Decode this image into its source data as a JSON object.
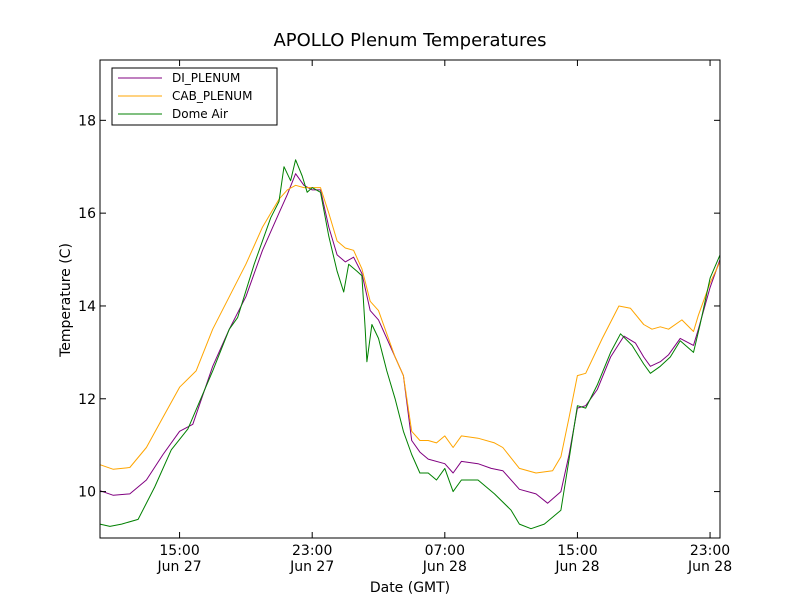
{
  "chart_data": {
    "type": "line",
    "title": "APOLLO Plenum Temperatures",
    "xlabel": "Date (GMT)",
    "ylabel": "Temperature (C)",
    "xunit": "hours since Jun 27 00:00 GMT",
    "xlim": [
      10.2,
      47.6
    ],
    "ylim": [
      9.0,
      19.3
    ],
    "yticks": [
      10,
      12,
      14,
      16,
      18
    ],
    "xticks": [
      {
        "x": 15,
        "time": "15:00",
        "date": "Jun 27"
      },
      {
        "x": 23,
        "time": "23:00",
        "date": "Jun 27"
      },
      {
        "x": 31,
        "time": "07:00",
        "date": "Jun 28"
      },
      {
        "x": 39,
        "time": "15:00",
        "date": "Jun 28"
      },
      {
        "x": 47,
        "time": "23:00",
        "date": "Jun 28"
      }
    ],
    "legend_position": "top-left",
    "series": [
      {
        "name": "DI_PLENUM",
        "color": "#800080",
        "points": [
          [
            10.2,
            10.02
          ],
          [
            11.0,
            9.92
          ],
          [
            12.0,
            9.95
          ],
          [
            13.0,
            10.25
          ],
          [
            14.0,
            10.8
          ],
          [
            15.0,
            11.3
          ],
          [
            15.8,
            11.45
          ],
          [
            17.0,
            12.7
          ],
          [
            18.0,
            13.5
          ],
          [
            19.0,
            14.2
          ],
          [
            20.0,
            15.2
          ],
          [
            21.0,
            16.0
          ],
          [
            21.5,
            16.4
          ],
          [
            22.0,
            16.85
          ],
          [
            22.5,
            16.6
          ],
          [
            23.0,
            16.5
          ],
          [
            23.5,
            16.5
          ],
          [
            24.0,
            15.7
          ],
          [
            24.5,
            15.1
          ],
          [
            25.0,
            14.95
          ],
          [
            25.5,
            15.05
          ],
          [
            26.0,
            14.7
          ],
          [
            26.5,
            13.9
          ],
          [
            27.0,
            13.7
          ],
          [
            27.5,
            13.3
          ],
          [
            28.0,
            12.9
          ],
          [
            28.5,
            12.5
          ],
          [
            29.0,
            11.1
          ],
          [
            29.5,
            10.85
          ],
          [
            30.0,
            10.7
          ],
          [
            31.0,
            10.6
          ],
          [
            31.5,
            10.4
          ],
          [
            32.0,
            10.65
          ],
          [
            33.0,
            10.6
          ],
          [
            33.8,
            10.5
          ],
          [
            34.5,
            10.45
          ],
          [
            35.5,
            10.05
          ],
          [
            36.5,
            9.95
          ],
          [
            37.2,
            9.75
          ],
          [
            38.0,
            10.0
          ],
          [
            38.5,
            10.8
          ],
          [
            39.0,
            11.8
          ],
          [
            39.5,
            11.85
          ],
          [
            40.2,
            12.2
          ],
          [
            41.0,
            12.9
          ],
          [
            41.8,
            13.35
          ],
          [
            42.5,
            13.2
          ],
          [
            43.0,
            12.9
          ],
          [
            43.4,
            12.7
          ],
          [
            44.0,
            12.8
          ],
          [
            44.5,
            12.95
          ],
          [
            45.2,
            13.3
          ],
          [
            46.0,
            13.15
          ],
          [
            46.3,
            13.5
          ],
          [
            47.0,
            14.4
          ],
          [
            47.6,
            15.0
          ]
        ]
      },
      {
        "name": "CAB_PLENUM",
        "color": "#ffa500",
        "points": [
          [
            10.2,
            10.58
          ],
          [
            11.0,
            10.48
          ],
          [
            12.0,
            10.52
          ],
          [
            13.0,
            10.95
          ],
          [
            14.0,
            11.6
          ],
          [
            15.0,
            12.25
          ],
          [
            16.0,
            12.6
          ],
          [
            17.0,
            13.5
          ],
          [
            18.0,
            14.2
          ],
          [
            19.0,
            14.9
          ],
          [
            20.0,
            15.7
          ],
          [
            21.0,
            16.3
          ],
          [
            21.5,
            16.5
          ],
          [
            22.0,
            16.6
          ],
          [
            22.5,
            16.55
          ],
          [
            23.0,
            16.55
          ],
          [
            23.5,
            16.55
          ],
          [
            24.0,
            16.0
          ],
          [
            24.5,
            15.4
          ],
          [
            25.0,
            15.25
          ],
          [
            25.5,
            15.2
          ],
          [
            26.0,
            14.8
          ],
          [
            26.5,
            14.1
          ],
          [
            27.0,
            13.9
          ],
          [
            27.5,
            13.4
          ],
          [
            28.0,
            12.9
          ],
          [
            28.5,
            12.5
          ],
          [
            29.0,
            11.3
          ],
          [
            29.5,
            11.1
          ],
          [
            30.0,
            11.1
          ],
          [
            30.5,
            11.05
          ],
          [
            31.0,
            11.2
          ],
          [
            31.5,
            10.95
          ],
          [
            32.0,
            11.2
          ],
          [
            33.0,
            11.15
          ],
          [
            34.0,
            11.05
          ],
          [
            34.5,
            10.95
          ],
          [
            35.5,
            10.5
          ],
          [
            36.5,
            10.4
          ],
          [
            37.5,
            10.45
          ],
          [
            38.0,
            10.75
          ],
          [
            38.5,
            11.6
          ],
          [
            39.0,
            12.5
          ],
          [
            39.5,
            12.55
          ],
          [
            40.5,
            13.3
          ],
          [
            41.5,
            14.0
          ],
          [
            42.2,
            13.95
          ],
          [
            43.0,
            13.6
          ],
          [
            43.5,
            13.5
          ],
          [
            44.0,
            13.55
          ],
          [
            44.5,
            13.5
          ],
          [
            45.3,
            13.7
          ],
          [
            46.0,
            13.45
          ],
          [
            46.3,
            13.8
          ],
          [
            47.0,
            14.5
          ],
          [
            47.6,
            14.95
          ]
        ]
      },
      {
        "name": "Dome Air",
        "color": "#008000",
        "points": [
          [
            10.2,
            9.3
          ],
          [
            10.8,
            9.25
          ],
          [
            11.5,
            9.3
          ],
          [
            12.5,
            9.4
          ],
          [
            13.5,
            10.1
          ],
          [
            14.5,
            10.9
          ],
          [
            15.5,
            11.35
          ],
          [
            17.0,
            12.6
          ],
          [
            18.0,
            13.5
          ],
          [
            18.5,
            13.75
          ],
          [
            19.5,
            14.9
          ],
          [
            20.5,
            15.9
          ],
          [
            21.0,
            16.25
          ],
          [
            21.3,
            17.0
          ],
          [
            21.7,
            16.7
          ],
          [
            22.0,
            17.15
          ],
          [
            22.4,
            16.8
          ],
          [
            22.7,
            16.45
          ],
          [
            23.0,
            16.55
          ],
          [
            23.5,
            16.45
          ],
          [
            24.0,
            15.5
          ],
          [
            24.5,
            14.75
          ],
          [
            24.9,
            14.3
          ],
          [
            25.2,
            14.9
          ],
          [
            25.7,
            14.75
          ],
          [
            26.0,
            14.65
          ],
          [
            26.2,
            13.5
          ],
          [
            26.3,
            12.8
          ],
          [
            26.6,
            13.6
          ],
          [
            27.0,
            13.3
          ],
          [
            27.5,
            12.6
          ],
          [
            28.0,
            12.0
          ],
          [
            28.5,
            11.3
          ],
          [
            29.0,
            10.8
          ],
          [
            29.5,
            10.4
          ],
          [
            30.0,
            10.4
          ],
          [
            30.5,
            10.25
          ],
          [
            31.0,
            10.5
          ],
          [
            31.5,
            10.0
          ],
          [
            32.0,
            10.25
          ],
          [
            33.0,
            10.25
          ],
          [
            34.0,
            9.95
          ],
          [
            35.0,
            9.6
          ],
          [
            35.5,
            9.3
          ],
          [
            36.2,
            9.2
          ],
          [
            37.0,
            9.3
          ],
          [
            38.0,
            9.6
          ],
          [
            38.5,
            10.7
          ],
          [
            39.0,
            11.85
          ],
          [
            39.5,
            11.8
          ],
          [
            40.2,
            12.3
          ],
          [
            41.0,
            13.0
          ],
          [
            41.6,
            13.4
          ],
          [
            42.3,
            13.15
          ],
          [
            43.0,
            12.75
          ],
          [
            43.4,
            12.55
          ],
          [
            44.0,
            12.7
          ],
          [
            44.6,
            12.9
          ],
          [
            45.2,
            13.25
          ],
          [
            46.0,
            13.0
          ],
          [
            46.4,
            13.6
          ],
          [
            47.0,
            14.6
          ],
          [
            47.6,
            15.1
          ]
        ]
      }
    ]
  }
}
